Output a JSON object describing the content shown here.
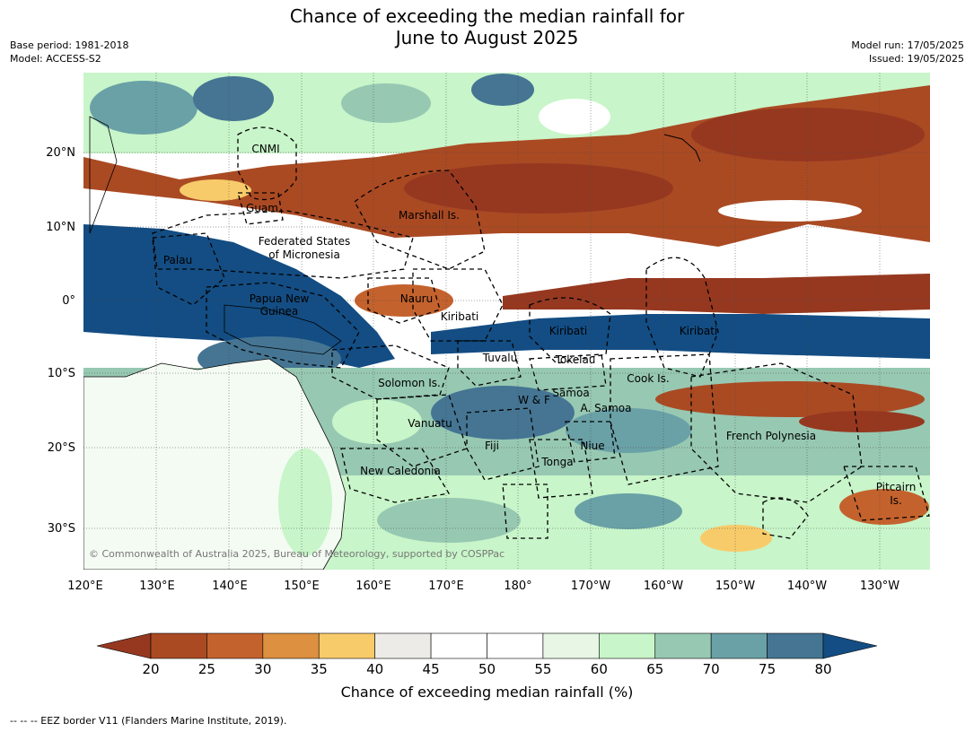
{
  "title": {
    "line1": "Chance of exceeding the median rainfall for",
    "line2": "June to August 2025"
  },
  "meta_left": {
    "base_period": "Base period: 1981-2018",
    "model": "Model: ACCESS-S2"
  },
  "meta_right": {
    "model_run": "Model run: 17/05/2025",
    "issued": "Issued: 19/05/2025"
  },
  "map": {
    "lon_labels": [
      "120°E",
      "130°E",
      "140°E",
      "150°E",
      "160°E",
      "170°E",
      "180°",
      "170°W",
      "160°W",
      "150°W",
      "140°W",
      "130°W"
    ],
    "lat_labels": [
      "20°N",
      "10°N",
      "0°",
      "10°S",
      "20°S",
      "30°S"
    ],
    "copyright": "© Commonwealth of Australia 2025, Bureau of Meteorology, supported by COSPPac",
    "regions": [
      {
        "name": "CNMI"
      },
      {
        "name": "Guam"
      },
      {
        "name": "Marshall Is."
      },
      {
        "name": "Federated States"
      },
      {
        "name": "of Micronesia"
      },
      {
        "name": "Palau"
      },
      {
        "name": "Papua New"
      },
      {
        "name": "Guinea"
      },
      {
        "name": "Nauru"
      },
      {
        "name": "Kiribati"
      },
      {
        "name": "Kiribati"
      },
      {
        "name": "Kiribati"
      },
      {
        "name": "Tuvalu"
      },
      {
        "name": "Tokelau"
      },
      {
        "name": "Cook Is."
      },
      {
        "name": "Solomon Is."
      },
      {
        "name": "W & F"
      },
      {
        "name": "Samoa"
      },
      {
        "name": "A. Samoa"
      },
      {
        "name": "Vanuatu"
      },
      {
        "name": "Fiji"
      },
      {
        "name": "Niue"
      },
      {
        "name": "Tonga"
      },
      {
        "name": "French Polynesia"
      },
      {
        "name": "New Caledonia"
      },
      {
        "name": "Pitcairn"
      },
      {
        "name": "Is."
      }
    ]
  },
  "colorbar": {
    "ticks": [
      "20",
      "25",
      "30",
      "35",
      "40",
      "45",
      "50",
      "55",
      "60",
      "65",
      "70",
      "75",
      "80"
    ],
    "colors": [
      "#aa4a23",
      "#c4622d",
      "#dd9040",
      "#f8cb6a",
      "#ecebe7",
      "#ffffff",
      "#ffffff",
      "#e8f6e5",
      "#c8f5c9",
      "#97c8b2",
      "#6aa1a7",
      "#457593"
    ],
    "below_color": "#963820",
    "above_color": "#134d83",
    "label": "Chance of exceeding median rainfall (%)"
  },
  "eez_note": "--  --  -- EEZ border V11 (Flanders Marine Institute, 2019)."
}
